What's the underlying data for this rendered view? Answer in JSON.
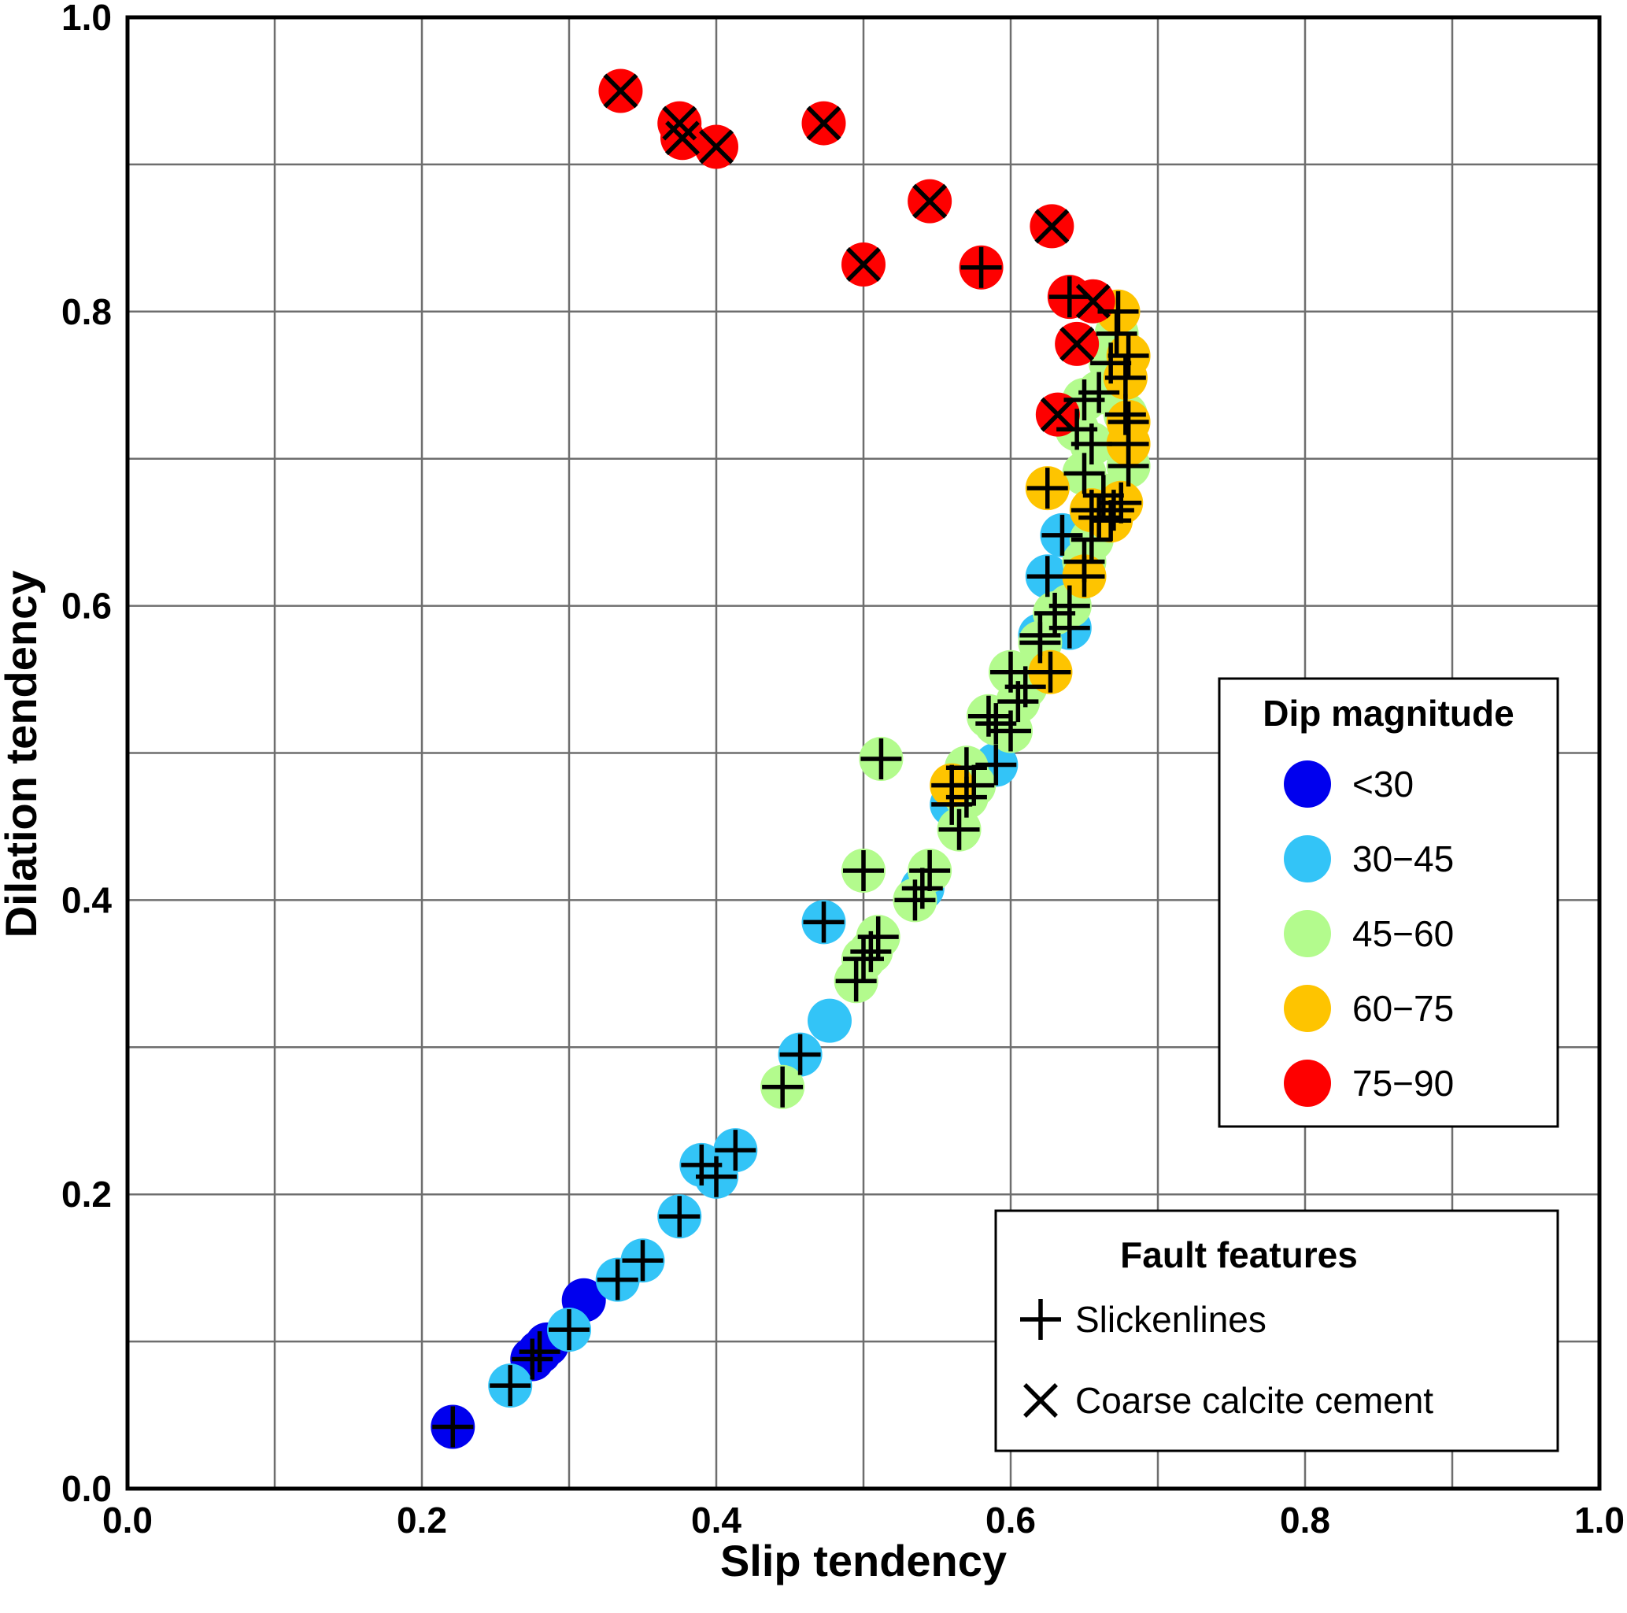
{
  "chart_data": {
    "type": "scatter",
    "xlabel": "Slip tendency",
    "ylabel": "Dilation tendency",
    "xlim": [
      0.0,
      1.0
    ],
    "ylim": [
      0.0,
      1.0
    ],
    "x_ticks": [
      "0.0",
      "0.2",
      "0.4",
      "0.6",
      "0.8",
      "1.0"
    ],
    "y_ticks": [
      "0.0",
      "0.2",
      "0.4",
      "0.6",
      "0.8",
      "1.0"
    ],
    "grid": true,
    "grid_step": 0.1,
    "legends": {
      "dip": {
        "title": "Dip magnitude",
        "placement": "right",
        "items": [
          {
            "label": "<30",
            "color": "#0000ee",
            "key": "<30"
          },
          {
            "label": "30−45",
            "color": "#33c4f7",
            "key": "30-45"
          },
          {
            "label": "45−60",
            "color": "#b3fb8d",
            "key": "45-60"
          },
          {
            "label": "60−75",
            "color": "#fec400",
            "key": "60-75"
          },
          {
            "label": "75−90",
            "color": "#fe0000",
            "key": "75-90"
          }
        ]
      },
      "features": {
        "title": "Fault features",
        "placement": "bottom-right",
        "items": [
          {
            "label": "Slickenlines",
            "marker": "plus"
          },
          {
            "label": "Coarse calcite cement",
            "marker": "x"
          }
        ]
      }
    },
    "series": [
      {
        "name": "<30",
        "color": "#0000ee",
        "points": [
          {
            "x": 0.221,
            "y": 0.042,
            "m": "plus"
          },
          {
            "x": 0.275,
            "y": 0.088,
            "m": "plus"
          },
          {
            "x": 0.28,
            "y": 0.093,
            "m": "plus"
          },
          {
            "x": 0.285,
            "y": 0.098,
            "m": "none"
          },
          {
            "x": 0.31,
            "y": 0.128,
            "m": "none"
          }
        ]
      },
      {
        "name": "30-45",
        "color": "#33c4f7",
        "points": [
          {
            "x": 0.26,
            "y": 0.07,
            "m": "plus"
          },
          {
            "x": 0.3,
            "y": 0.108,
            "m": "plus"
          },
          {
            "x": 0.333,
            "y": 0.142,
            "m": "plus"
          },
          {
            "x": 0.35,
            "y": 0.155,
            "m": "plus"
          },
          {
            "x": 0.375,
            "y": 0.185,
            "m": "plus"
          },
          {
            "x": 0.39,
            "y": 0.22,
            "m": "plus"
          },
          {
            "x": 0.4,
            "y": 0.212,
            "m": "plus"
          },
          {
            "x": 0.413,
            "y": 0.23,
            "m": "plus"
          },
          {
            "x": 0.457,
            "y": 0.295,
            "m": "plus"
          },
          {
            "x": 0.477,
            "y": 0.318,
            "m": "none"
          },
          {
            "x": 0.473,
            "y": 0.385,
            "m": "plus"
          },
          {
            "x": 0.54,
            "y": 0.408,
            "m": "plus"
          },
          {
            "x": 0.56,
            "y": 0.465,
            "m": "plus"
          },
          {
            "x": 0.59,
            "y": 0.492,
            "m": "plus"
          },
          {
            "x": 0.62,
            "y": 0.58,
            "m": "plus"
          },
          {
            "x": 0.64,
            "y": 0.585,
            "m": "plus"
          },
          {
            "x": 0.625,
            "y": 0.62,
            "m": "plus"
          },
          {
            "x": 0.635,
            "y": 0.648,
            "m": "plus"
          }
        ]
      },
      {
        "name": "45-60",
        "color": "#b3fb8d",
        "points": [
          {
            "x": 0.445,
            "y": 0.273,
            "m": "plus"
          },
          {
            "x": 0.495,
            "y": 0.345,
            "m": "plus"
          },
          {
            "x": 0.5,
            "y": 0.36,
            "m": "plus"
          },
          {
            "x": 0.505,
            "y": 0.365,
            "m": "plus"
          },
          {
            "x": 0.51,
            "y": 0.375,
            "m": "plus"
          },
          {
            "x": 0.5,
            "y": 0.42,
            "m": "plus"
          },
          {
            "x": 0.512,
            "y": 0.496,
            "m": "plus"
          },
          {
            "x": 0.535,
            "y": 0.4,
            "m": "plus"
          },
          {
            "x": 0.545,
            "y": 0.42,
            "m": "plus"
          },
          {
            "x": 0.565,
            "y": 0.448,
            "m": "plus"
          },
          {
            "x": 0.57,
            "y": 0.47,
            "m": "plus"
          },
          {
            "x": 0.575,
            "y": 0.478,
            "m": "plus"
          },
          {
            "x": 0.57,
            "y": 0.49,
            "m": "plus"
          },
          {
            "x": 0.585,
            "y": 0.525,
            "m": "plus"
          },
          {
            "x": 0.59,
            "y": 0.52,
            "m": "plus"
          },
          {
            "x": 0.6,
            "y": 0.515,
            "m": "plus"
          },
          {
            "x": 0.605,
            "y": 0.535,
            "m": "plus"
          },
          {
            "x": 0.61,
            "y": 0.545,
            "m": "plus"
          },
          {
            "x": 0.6,
            "y": 0.555,
            "m": "plus"
          },
          {
            "x": 0.62,
            "y": 0.575,
            "m": "plus"
          },
          {
            "x": 0.63,
            "y": 0.595,
            "m": "plus"
          },
          {
            "x": 0.64,
            "y": 0.6,
            "m": "plus"
          },
          {
            "x": 0.65,
            "y": 0.63,
            "m": "plus"
          },
          {
            "x": 0.655,
            "y": 0.645,
            "m": "plus"
          },
          {
            "x": 0.66,
            "y": 0.66,
            "m": "plus"
          },
          {
            "x": 0.663,
            "y": 0.675,
            "m": "plus"
          },
          {
            "x": 0.67,
            "y": 0.665,
            "m": "plus"
          },
          {
            "x": 0.65,
            "y": 0.69,
            "m": "plus"
          },
          {
            "x": 0.655,
            "y": 0.71,
            "m": "plus"
          },
          {
            "x": 0.645,
            "y": 0.72,
            "m": "plus"
          },
          {
            "x": 0.65,
            "y": 0.74,
            "m": "plus"
          },
          {
            "x": 0.66,
            "y": 0.745,
            "m": "plus"
          },
          {
            "x": 0.668,
            "y": 0.765,
            "m": "plus"
          },
          {
            "x": 0.68,
            "y": 0.695,
            "m": "plus"
          },
          {
            "x": 0.678,
            "y": 0.73,
            "m": "plus"
          },
          {
            "x": 0.672,
            "y": 0.785,
            "m": "plus"
          }
        ]
      },
      {
        "name": "60-75",
        "color": "#fec400",
        "points": [
          {
            "x": 0.56,
            "y": 0.478,
            "m": "plus"
          },
          {
            "x": 0.627,
            "y": 0.555,
            "m": "plus"
          },
          {
            "x": 0.625,
            "y": 0.68,
            "m": "plus"
          },
          {
            "x": 0.65,
            "y": 0.62,
            "m": "plus"
          },
          {
            "x": 0.655,
            "y": 0.665,
            "m": "plus"
          },
          {
            "x": 0.668,
            "y": 0.658,
            "m": "plus"
          },
          {
            "x": 0.675,
            "y": 0.67,
            "m": "plus"
          },
          {
            "x": 0.68,
            "y": 0.71,
            "m": "plus"
          },
          {
            "x": 0.68,
            "y": 0.725,
            "m": "plus"
          },
          {
            "x": 0.678,
            "y": 0.755,
            "m": "plus"
          },
          {
            "x": 0.68,
            "y": 0.77,
            "m": "plus"
          },
          {
            "x": 0.673,
            "y": 0.8,
            "m": "plus"
          }
        ]
      },
      {
        "name": "75-90",
        "color": "#fe0000",
        "points": [
          {
            "x": 0.335,
            "y": 0.95,
            "m": "x"
          },
          {
            "x": 0.375,
            "y": 0.928,
            "m": "x"
          },
          {
            "x": 0.377,
            "y": 0.918,
            "m": "x"
          },
          {
            "x": 0.4,
            "y": 0.912,
            "m": "x"
          },
          {
            "x": 0.473,
            "y": 0.928,
            "m": "x"
          },
          {
            "x": 0.545,
            "y": 0.875,
            "m": "x"
          },
          {
            "x": 0.5,
            "y": 0.832,
            "m": "x"
          },
          {
            "x": 0.58,
            "y": 0.83,
            "m": "plus"
          },
          {
            "x": 0.628,
            "y": 0.858,
            "m": "x"
          },
          {
            "x": 0.64,
            "y": 0.81,
            "m": "plus"
          },
          {
            "x": 0.656,
            "y": 0.807,
            "m": "x"
          },
          {
            "x": 0.645,
            "y": 0.778,
            "m": "x"
          },
          {
            "x": 0.632,
            "y": 0.73,
            "m": "x"
          }
        ]
      }
    ]
  }
}
